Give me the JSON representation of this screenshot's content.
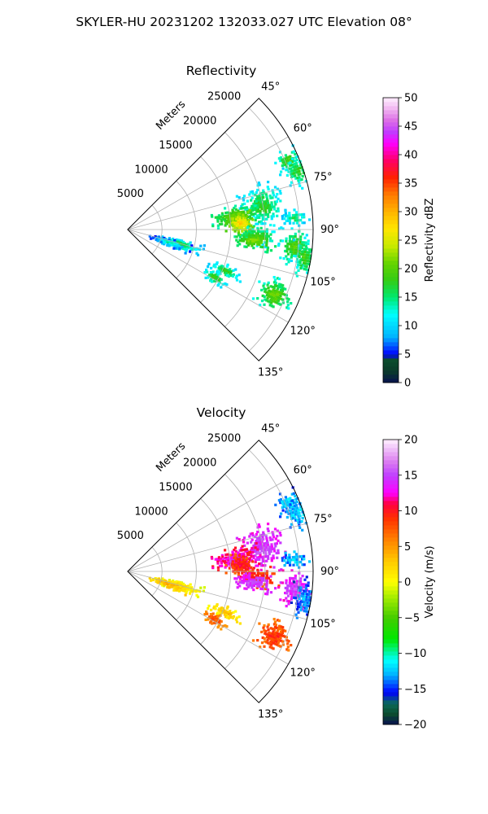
{
  "figure": {
    "title": "SKYLER-HU  20231202  132033.027 UTC Elevation 08°"
  },
  "chart_data": [
    {
      "type": "heatmap",
      "subtype": "polar-sector (radar PPI)",
      "title": "Reflectivity",
      "radial_label": "Meters",
      "range_ticks": [
        "5000",
        "10000",
        "15000",
        "20000",
        "25000"
      ],
      "azimuth_ticks": [
        "45°",
        "60°",
        "75°",
        "90°",
        "105°",
        "120°",
        "135°"
      ],
      "azimuth_range_deg": [
        45,
        135
      ],
      "range_max_m": 27000,
      "colorbar": {
        "label": "Reflectivity dBZ",
        "min": 0,
        "max": 50,
        "ticks": [
          "0",
          "5",
          "10",
          "15",
          "20",
          "25",
          "30",
          "35",
          "40",
          "45",
          "50"
        ],
        "colormap": "pyart NWSRef",
        "stops": [
          {
            "v": 0,
            "c": "#08104f"
          },
          {
            "v": 2,
            "c": "#0a3a2a"
          },
          {
            "v": 4,
            "c": "#0c4d2d"
          },
          {
            "v": 5,
            "c": "#0000ff"
          },
          {
            "v": 8,
            "c": "#00b2ff"
          },
          {
            "v": 12,
            "c": "#00ffff"
          },
          {
            "v": 15,
            "c": "#00e86e"
          },
          {
            "v": 18,
            "c": "#33cc14"
          },
          {
            "v": 21,
            "c": "#66d400"
          },
          {
            "v": 24,
            "c": "#c8ea00"
          },
          {
            "v": 27,
            "c": "#ffe600"
          },
          {
            "v": 30,
            "c": "#ffb400"
          },
          {
            "v": 33,
            "c": "#ff7a00"
          },
          {
            "v": 36,
            "c": "#ff2200"
          },
          {
            "v": 39,
            "c": "#ff0066"
          },
          {
            "v": 42,
            "c": "#ff00ff"
          },
          {
            "v": 44,
            "c": "#c03cff"
          },
          {
            "v": 46,
            "c": "#dc6ee6"
          },
          {
            "v": 48,
            "c": "#f0b4f0"
          },
          {
            "v": 50,
            "c": "#fff0ff"
          }
        ]
      },
      "cells": [
        {
          "az": 67,
          "r": 25500,
          "s_az": 2.0,
          "s_r": 900,
          "value": 19,
          "density": 0.65,
          "seed": 11
        },
        {
          "az": 71,
          "r": 26200,
          "s_az": 2.5,
          "s_r": 900,
          "value": 18,
          "density": 0.55,
          "seed": 12
        },
        {
          "az": 80,
          "r": 20000,
          "s_az": 4.0,
          "s_r": 1400,
          "value": 18,
          "density": 0.6,
          "seed": 13
        },
        {
          "az": 84,
          "r": 16000,
          "s_az": 3.0,
          "s_r": 1600,
          "value": 22,
          "density": 0.7,
          "seed": 14
        },
        {
          "az": 87,
          "r": 16500,
          "s_az": 2.5,
          "s_r": 900,
          "value": 28,
          "density": 0.75,
          "seed": 15
        },
        {
          "az": 86,
          "r": 24500,
          "s_az": 1.5,
          "s_r": 1000,
          "value": 16,
          "density": 0.6,
          "seed": 16
        },
        {
          "az": 93,
          "r": 19000,
          "s_az": 2.0,
          "s_r": 1300,
          "value": 19,
          "density": 0.6,
          "seed": 17
        },
        {
          "az": 95,
          "r": 18500,
          "s_az": 2.0,
          "s_r": 1400,
          "value": 22,
          "density": 0.7,
          "seed": 18
        },
        {
          "az": 96,
          "r": 24500,
          "s_az": 3.0,
          "s_r": 1000,
          "value": 20,
          "density": 0.7,
          "seed": 19
        },
        {
          "az": 99,
          "r": 26200,
          "s_az": 3.0,
          "s_r": 800,
          "value": 19,
          "density": 0.7,
          "seed": 20
        },
        {
          "az": 106,
          "r": 8000,
          "s_az": 2.5,
          "s_r": 1500,
          "value": 17,
          "density": 0.7,
          "seed": 21
        },
        {
          "az": 108,
          "r": 6500,
          "s_az": 2.0,
          "s_r": 1300,
          "value": 14,
          "density": 0.5,
          "seed": 22
        },
        {
          "az": 113,
          "r": 15500,
          "s_az": 1.5,
          "s_r": 1100,
          "value": 18,
          "density": 0.6,
          "seed": 23
        },
        {
          "az": 119,
          "r": 14500,
          "s_az": 1.5,
          "s_r": 900,
          "value": 19,
          "density": 0.7,
          "seed": 24
        },
        {
          "az": 114,
          "r": 23500,
          "s_az": 2.5,
          "s_r": 1200,
          "value": 21,
          "density": 0.75,
          "seed": 25
        }
      ]
    },
    {
      "type": "heatmap",
      "subtype": "polar-sector (radar PPI)",
      "title": "Velocity",
      "radial_label": "Meters",
      "range_ticks": [
        "5000",
        "10000",
        "15000",
        "20000",
        "25000"
      ],
      "azimuth_ticks": [
        "45°",
        "60°",
        "75°",
        "90°",
        "105°",
        "120°",
        "135°"
      ],
      "azimuth_range_deg": [
        45,
        135
      ],
      "range_max_m": 27000,
      "colorbar": {
        "label": "Velocity (m/s)",
        "min": -20,
        "max": 20,
        "ticks": [
          "−20",
          "−15",
          "−10",
          "−5",
          "0",
          "5",
          "10",
          "15",
          "20"
        ],
        "colormap": "pyart NWSVel-like",
        "stops": [
          {
            "v": -20,
            "c": "#08104f"
          },
          {
            "v": -18.5,
            "c": "#0c4d2d"
          },
          {
            "v": -17,
            "c": "#0a6a5a"
          },
          {
            "v": -15.5,
            "c": "#0000ff"
          },
          {
            "v": -13,
            "c": "#00b2ff"
          },
          {
            "v": -11,
            "c": "#00ffff"
          },
          {
            "v": -8,
            "c": "#00e800"
          },
          {
            "v": -5,
            "c": "#44cc00"
          },
          {
            "v": -2,
            "c": "#aaee00"
          },
          {
            "v": 0,
            "c": "#ffff00"
          },
          {
            "v": 3,
            "c": "#ffc800"
          },
          {
            "v": 6,
            "c": "#ff8000"
          },
          {
            "v": 9,
            "c": "#ff3000"
          },
          {
            "v": 11,
            "c": "#ff0040"
          },
          {
            "v": 12.5,
            "c": "#ff00ff"
          },
          {
            "v": 15,
            "c": "#c040ff"
          },
          {
            "v": 17,
            "c": "#dc80f0"
          },
          {
            "v": 20,
            "c": "#fff0ff"
          }
        ]
      },
      "cells": [
        {
          "az": 67,
          "r": 25500,
          "s_az": 2.0,
          "s_r": 900,
          "value": -12,
          "density": 0.65,
          "seed": 11
        },
        {
          "az": 71,
          "r": 26200,
          "s_az": 2.5,
          "s_r": 900,
          "value": -12,
          "density": 0.55,
          "seed": 12
        },
        {
          "az": 80,
          "r": 20000,
          "s_az": 4.0,
          "s_r": 1400,
          "value": 15,
          "density": 0.6,
          "seed": 13
        },
        {
          "az": 84,
          "r": 16000,
          "s_az": 3.0,
          "s_r": 1600,
          "value": 13,
          "density": 0.7,
          "seed": 14
        },
        {
          "az": 87,
          "r": 16500,
          "s_az": 2.5,
          "s_r": 900,
          "value": 10,
          "density": 0.75,
          "seed": 15
        },
        {
          "az": 86,
          "r": 24500,
          "s_az": 1.5,
          "s_r": 1000,
          "value": -12,
          "density": 0.6,
          "seed": 16
        },
        {
          "az": 93,
          "r": 19000,
          "s_az": 2.0,
          "s_r": 1300,
          "value": 10,
          "density": 0.6,
          "seed": 17
        },
        {
          "az": 95,
          "r": 18500,
          "s_az": 2.0,
          "s_r": 1400,
          "value": 15,
          "density": 0.7,
          "seed": 18
        },
        {
          "az": 96,
          "r": 24500,
          "s_az": 3.0,
          "s_r": 1000,
          "value": 15,
          "density": 0.7,
          "seed": 19
        },
        {
          "az": 99,
          "r": 26200,
          "s_az": 3.0,
          "s_r": 800,
          "value": -13,
          "density": 0.7,
          "seed": 20
        },
        {
          "az": 106,
          "r": 8000,
          "s_az": 2.5,
          "s_r": 1500,
          "value": 2,
          "density": 0.7,
          "seed": 21
        },
        {
          "az": 108,
          "r": 6500,
          "s_az": 2.0,
          "s_r": 1300,
          "value": 4,
          "density": 0.5,
          "seed": 22
        },
        {
          "az": 113,
          "r": 15500,
          "s_az": 1.5,
          "s_r": 1100,
          "value": 3,
          "density": 0.6,
          "seed": 23
        },
        {
          "az": 119,
          "r": 14500,
          "s_az": 1.5,
          "s_r": 900,
          "value": 8,
          "density": 0.7,
          "seed": 24
        },
        {
          "az": 114,
          "r": 23500,
          "s_az": 2.5,
          "s_r": 1200,
          "value": 9,
          "density": 0.75,
          "seed": 25
        }
      ]
    }
  ]
}
